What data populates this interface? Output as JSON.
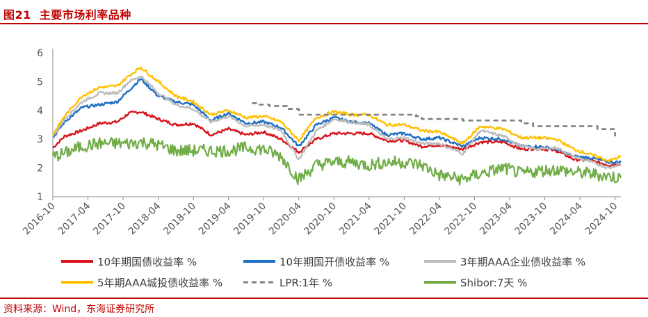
{
  "header": {
    "figure_no": "图21",
    "title": "主要市场利率品种"
  },
  "footer": {
    "source": "资料来源：Wind，东海证券研究所"
  },
  "colors": {
    "brand": "#C00000",
    "s10y_gov": "#D7141C",
    "s10y_cdb": "#1F6FC2",
    "s3y_aaa": "#BDBDBD",
    "s5y_aaa_lgfv": "#FFC000",
    "lpr": "#7F7F7F",
    "shibor": "#70AD47"
  },
  "chart_data": {
    "type": "line",
    "title": "主要市场利率品种",
    "xlabel": "",
    "ylabel": "",
    "ylim": [
      1,
      6
    ],
    "yticks": [
      1,
      2,
      3,
      4,
      5,
      6
    ],
    "xlim": [
      "2016-10",
      "2024-11"
    ],
    "xticks": [
      "2016-10",
      "2017-04",
      "2017-10",
      "2018-04",
      "2018-10",
      "2019-04",
      "2019-10",
      "2020-04",
      "2020-10",
      "2021-04",
      "2021-10",
      "2022-04",
      "2022-10",
      "2023-04",
      "2023-10",
      "2024-04",
      "2024-10"
    ],
    "legend_position": "bottom",
    "series": [
      {
        "name": "10年期国债收益率 %",
        "color": "#D7141C",
        "width": 2.4,
        "dash": "",
        "points": [
          [
            "2016-10",
            2.7
          ],
          [
            "2016-12",
            3.1
          ],
          [
            "2017-03",
            3.3
          ],
          [
            "2017-06",
            3.55
          ],
          [
            "2017-09",
            3.6
          ],
          [
            "2017-11",
            3.9
          ],
          [
            "2018-01",
            3.95
          ],
          [
            "2018-04",
            3.7
          ],
          [
            "2018-07",
            3.5
          ],
          [
            "2018-10",
            3.55
          ],
          [
            "2019-01",
            3.15
          ],
          [
            "2019-04",
            3.35
          ],
          [
            "2019-07",
            3.15
          ],
          [
            "2019-10",
            3.25
          ],
          [
            "2020-01",
            3.0
          ],
          [
            "2020-04",
            2.55
          ],
          [
            "2020-07",
            3.0
          ],
          [
            "2020-10",
            3.2
          ],
          [
            "2021-01",
            3.2
          ],
          [
            "2021-04",
            3.2
          ],
          [
            "2021-07",
            2.95
          ],
          [
            "2021-10",
            2.95
          ],
          [
            "2022-01",
            2.75
          ],
          [
            "2022-04",
            2.8
          ],
          [
            "2022-08",
            2.65
          ],
          [
            "2022-11",
            2.9
          ],
          [
            "2023-03",
            2.9
          ],
          [
            "2023-06",
            2.65
          ],
          [
            "2023-09",
            2.68
          ],
          [
            "2023-12",
            2.6
          ],
          [
            "2024-03",
            2.3
          ],
          [
            "2024-06",
            2.25
          ],
          [
            "2024-09",
            2.1
          ],
          [
            "2024-11",
            2.15
          ]
        ]
      },
      {
        "name": "10年期国开债收益率 %",
        "color": "#1F6FC2",
        "width": 2.4,
        "dash": "",
        "points": [
          [
            "2016-10",
            3.05
          ],
          [
            "2016-12",
            3.6
          ],
          [
            "2017-03",
            4.1
          ],
          [
            "2017-06",
            4.2
          ],
          [
            "2017-09",
            4.3
          ],
          [
            "2017-11",
            4.7
          ],
          [
            "2018-01",
            5.1
          ],
          [
            "2018-04",
            4.5
          ],
          [
            "2018-07",
            4.3
          ],
          [
            "2018-10",
            4.2
          ],
          [
            "2019-01",
            3.65
          ],
          [
            "2019-04",
            3.9
          ],
          [
            "2019-07",
            3.55
          ],
          [
            "2019-10",
            3.6
          ],
          [
            "2020-01",
            3.4
          ],
          [
            "2020-04",
            2.75
          ],
          [
            "2020-07",
            3.5
          ],
          [
            "2020-10",
            3.75
          ],
          [
            "2021-01",
            3.6
          ],
          [
            "2021-04",
            3.55
          ],
          [
            "2021-07",
            3.15
          ],
          [
            "2021-10",
            3.2
          ],
          [
            "2022-01",
            3.0
          ],
          [
            "2022-04",
            3.05
          ],
          [
            "2022-08",
            2.75
          ],
          [
            "2022-11",
            3.05
          ],
          [
            "2023-03",
            3.0
          ],
          [
            "2023-06",
            2.75
          ],
          [
            "2023-09",
            2.75
          ],
          [
            "2023-12",
            2.65
          ],
          [
            "2024-03",
            2.4
          ],
          [
            "2024-06",
            2.35
          ],
          [
            "2024-09",
            2.2
          ],
          [
            "2024-11",
            2.2
          ]
        ]
      },
      {
        "name": "3年期AAA企业债收益率 %",
        "color": "#BDBDBD",
        "width": 2.4,
        "dash": "",
        "points": [
          [
            "2016-10",
            3.1
          ],
          [
            "2016-12",
            3.7
          ],
          [
            "2017-03",
            4.3
          ],
          [
            "2017-06",
            4.6
          ],
          [
            "2017-09",
            4.6
          ],
          [
            "2017-11",
            5.0
          ],
          [
            "2018-01",
            5.2
          ],
          [
            "2018-04",
            4.6
          ],
          [
            "2018-07",
            4.2
          ],
          [
            "2018-10",
            4.05
          ],
          [
            "2019-01",
            3.6
          ],
          [
            "2019-04",
            3.8
          ],
          [
            "2019-07",
            3.45
          ],
          [
            "2019-10",
            3.5
          ],
          [
            "2020-01",
            3.3
          ],
          [
            "2020-04",
            2.3
          ],
          [
            "2020-07",
            3.3
          ],
          [
            "2020-10",
            3.7
          ],
          [
            "2021-01",
            3.6
          ],
          [
            "2021-04",
            3.5
          ],
          [
            "2021-07",
            3.0
          ],
          [
            "2021-10",
            3.05
          ],
          [
            "2022-01",
            2.85
          ],
          [
            "2022-04",
            2.85
          ],
          [
            "2022-08",
            2.5
          ],
          [
            "2022-11",
            3.3
          ],
          [
            "2023-03",
            3.1
          ],
          [
            "2023-06",
            2.75
          ],
          [
            "2023-09",
            2.65
          ],
          [
            "2023-12",
            2.7
          ],
          [
            "2024-03",
            2.4
          ],
          [
            "2024-06",
            2.2
          ],
          [
            "2024-09",
            2.0
          ],
          [
            "2024-11",
            2.15
          ]
        ]
      },
      {
        "name": "5年期AAA城投债收益率 %",
        "color": "#FFC000",
        "width": 2.4,
        "dash": "",
        "points": [
          [
            "2016-10",
            3.15
          ],
          [
            "2016-12",
            3.8
          ],
          [
            "2017-03",
            4.5
          ],
          [
            "2017-06",
            4.8
          ],
          [
            "2017-09",
            4.85
          ],
          [
            "2017-11",
            5.2
          ],
          [
            "2018-01",
            5.5
          ],
          [
            "2018-04",
            5.0
          ],
          [
            "2018-07",
            4.5
          ],
          [
            "2018-10",
            4.3
          ],
          [
            "2019-01",
            3.85
          ],
          [
            "2019-04",
            4.0
          ],
          [
            "2019-07",
            3.75
          ],
          [
            "2019-10",
            3.8
          ],
          [
            "2020-01",
            3.6
          ],
          [
            "2020-04",
            2.95
          ],
          [
            "2020-07",
            3.75
          ],
          [
            "2020-10",
            3.95
          ],
          [
            "2021-01",
            3.85
          ],
          [
            "2021-04",
            3.85
          ],
          [
            "2021-07",
            3.5
          ],
          [
            "2021-10",
            3.5
          ],
          [
            "2022-01",
            3.3
          ],
          [
            "2022-04",
            3.25
          ],
          [
            "2022-08",
            2.85
          ],
          [
            "2022-11",
            3.45
          ],
          [
            "2023-03",
            3.35
          ],
          [
            "2023-06",
            3.05
          ],
          [
            "2023-09",
            3.05
          ],
          [
            "2023-12",
            3.0
          ],
          [
            "2024-03",
            2.65
          ],
          [
            "2024-06",
            2.45
          ],
          [
            "2024-09",
            2.25
          ],
          [
            "2024-11",
            2.4
          ]
        ]
      },
      {
        "name": "LPR:1年 %",
        "color": "#7F7F7F",
        "width": 2.6,
        "dash": "7,5",
        "points": [
          [
            "2019-08",
            4.25
          ],
          [
            "2019-09",
            4.2
          ],
          [
            "2019-11",
            4.15
          ],
          [
            "2020-02",
            4.05
          ],
          [
            "2020-04",
            3.85
          ],
          [
            "2021-12",
            3.8
          ],
          [
            "2022-01",
            3.7
          ],
          [
            "2022-08",
            3.65
          ],
          [
            "2023-06",
            3.55
          ],
          [
            "2023-08",
            3.45
          ],
          [
            "2024-07",
            3.35
          ],
          [
            "2024-10",
            3.1
          ]
        ]
      },
      {
        "name": "Shibor:7天 %",
        "color": "#70AD47",
        "width": 2.2,
        "dash": "",
        "points": [
          [
            "2016-10",
            2.4
          ],
          [
            "2016-12",
            2.5
          ],
          [
            "2017-03",
            2.75
          ],
          [
            "2017-06",
            2.85
          ],
          [
            "2017-09",
            2.85
          ],
          [
            "2017-11",
            2.85
          ],
          [
            "2018-01",
            2.9
          ],
          [
            "2018-04",
            2.8
          ],
          [
            "2018-07",
            2.6
          ],
          [
            "2018-10",
            2.6
          ],
          [
            "2019-01",
            2.6
          ],
          [
            "2019-04",
            2.6
          ],
          [
            "2019-07",
            2.7
          ],
          [
            "2019-10",
            2.65
          ],
          [
            "2020-01",
            2.4
          ],
          [
            "2020-04",
            1.6
          ],
          [
            "2020-07",
            2.1
          ],
          [
            "2020-10",
            2.2
          ],
          [
            "2021-01",
            2.2
          ],
          [
            "2021-04",
            2.1
          ],
          [
            "2021-07",
            2.2
          ],
          [
            "2021-10",
            2.2
          ],
          [
            "2022-01",
            2.1
          ],
          [
            "2022-04",
            1.75
          ],
          [
            "2022-08",
            1.6
          ],
          [
            "2022-11",
            1.8
          ],
          [
            "2023-03",
            2.0
          ],
          [
            "2023-06",
            1.8
          ],
          [
            "2023-09",
            1.9
          ],
          [
            "2023-12",
            1.95
          ],
          [
            "2024-03",
            1.85
          ],
          [
            "2024-06",
            1.8
          ],
          [
            "2024-09",
            1.7
          ],
          [
            "2024-11",
            1.65
          ]
        ]
      }
    ]
  }
}
